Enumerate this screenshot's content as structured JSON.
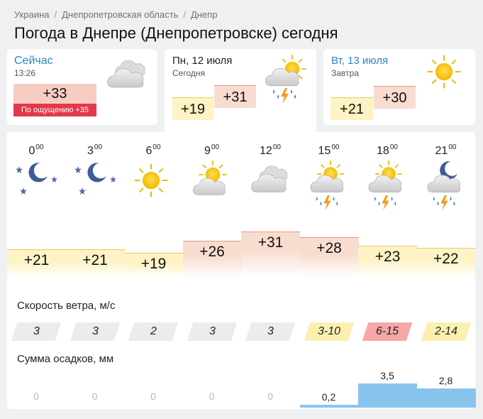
{
  "breadcrumbs": [
    "Украина",
    "Днепропетровская область",
    "Днепр"
  ],
  "page_title": "Погода в Днепре (Днепропетровске) сегодня",
  "now": {
    "title": "Сейчас",
    "time": "13:26",
    "temp": "+33",
    "feels_like": "По ощущению +35",
    "icon": "cloudy-icon"
  },
  "days": [
    {
      "title": "Пн, 12 июля",
      "subtitle": "Сегодня",
      "low": "+19",
      "high": "+31",
      "icon": "partly-cloudy-thunderstorm-icon"
    },
    {
      "title": "Вт, 13 июля",
      "subtitle": "Завтра",
      "low": "+21",
      "high": "+30",
      "icon": "sun-icon"
    }
  ],
  "hourly": {
    "hours": [
      {
        "h": "0",
        "m": "00",
        "icon": "night-clear-icon",
        "temp": "+21",
        "temp_value": 21
      },
      {
        "h": "3",
        "m": "00",
        "icon": "night-clear-icon",
        "temp": "+21",
        "temp_value": 21
      },
      {
        "h": "6",
        "m": "00",
        "icon": "sun-icon",
        "temp": "+19",
        "temp_value": 19
      },
      {
        "h": "9",
        "m": "00",
        "icon": "partly-cloudy-icon",
        "temp": "+26",
        "temp_value": 26
      },
      {
        "h": "12",
        "m": "00",
        "icon": "cloudy-icon",
        "temp": "+31",
        "temp_value": 31
      },
      {
        "h": "15",
        "m": "00",
        "icon": "partly-cloudy-thunderstorm-icon",
        "temp": "+28",
        "temp_value": 28
      },
      {
        "h": "18",
        "m": "00",
        "icon": "partly-cloudy-thunderstorm-icon",
        "temp": "+23",
        "temp_value": 23
      },
      {
        "h": "21",
        "m": "00",
        "icon": "night-cloudy-thunderstorm-icon",
        "temp": "+22",
        "temp_value": 22
      }
    ],
    "wind_label": "Скорость ветра, м/с",
    "wind": [
      {
        "text": "3",
        "level": "calm"
      },
      {
        "text": "3",
        "level": "calm"
      },
      {
        "text": "2",
        "level": "calm"
      },
      {
        "text": "3",
        "level": "calm"
      },
      {
        "text": "3",
        "level": "calm"
      },
      {
        "text": "3-10",
        "level": "moderate"
      },
      {
        "text": "6-15",
        "level": "strong"
      },
      {
        "text": "2-14",
        "level": "moderate"
      }
    ],
    "precip_label": "Сумма осадков, мм",
    "precip": [
      {
        "text": "0",
        "value": 0
      },
      {
        "text": "0",
        "value": 0
      },
      {
        "text": "0",
        "value": 0
      },
      {
        "text": "0",
        "value": 0
      },
      {
        "text": "0",
        "value": 0
      },
      {
        "text": "0,2",
        "value": 0.2
      },
      {
        "text": "3,5",
        "value": 3.5
      },
      {
        "text": "2,8",
        "value": 2.8
      }
    ]
  },
  "colors": {
    "accent_blue": "#2b86c8",
    "feels_like_red": "#e2394a",
    "temp_warm": "#fdf3c4",
    "temp_hot": "#f9dcd0",
    "wind_calm": "#ececec",
    "wind_moderate": "#fcf0b0",
    "wind_strong": "#f7a7a7",
    "precip_blue": "#89c4ee"
  }
}
